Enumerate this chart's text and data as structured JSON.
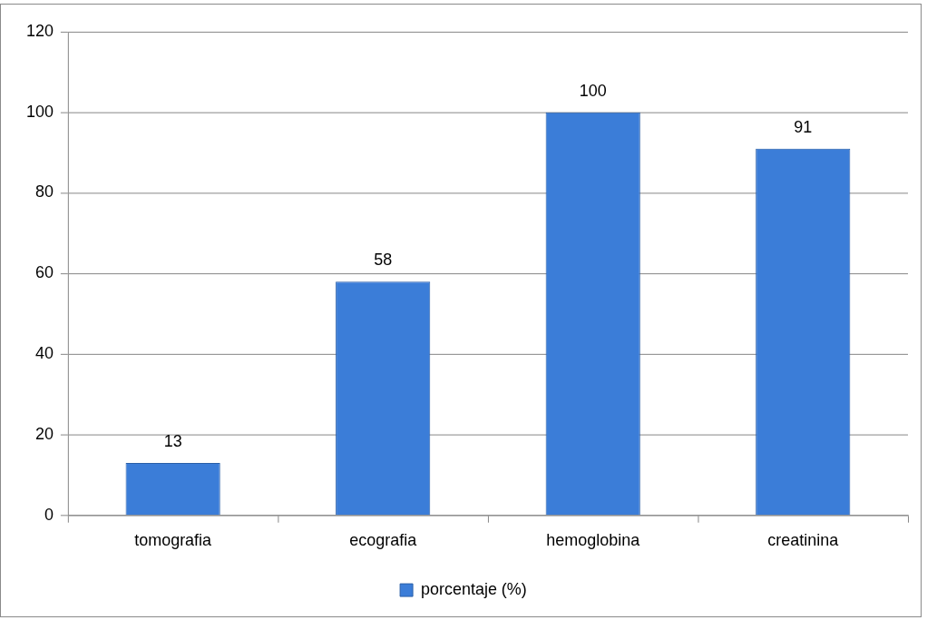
{
  "chart_data": {
    "type": "bar",
    "categories": [
      "tomografia",
      "ecografia",
      "hemoglobina",
      "creatinina"
    ],
    "series": [
      {
        "name": "porcentaje (%)",
        "color": "#3b7dd8",
        "values": [
          13,
          58,
          100,
          91
        ]
      }
    ],
    "ylim": [
      0,
      120
    ],
    "yticks": [
      0,
      20,
      40,
      60,
      80,
      100,
      120
    ],
    "grid": "y",
    "legend": "bottom",
    "data_labels": true
  }
}
